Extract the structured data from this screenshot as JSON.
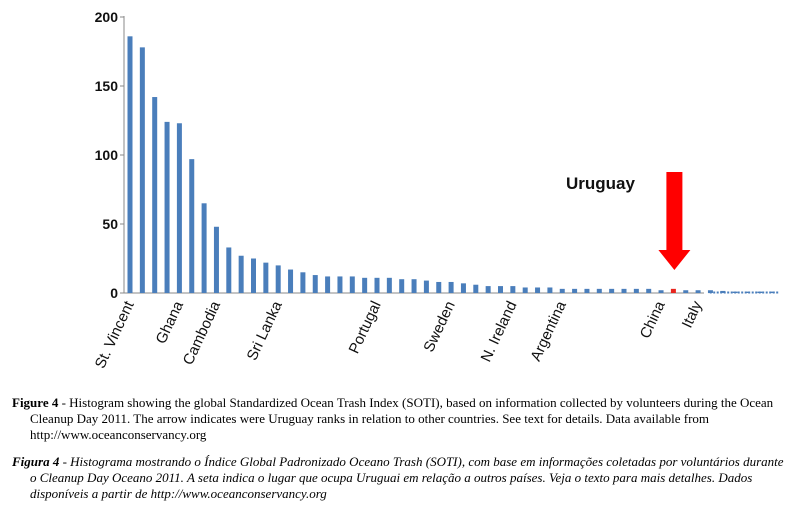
{
  "chart_data": {
    "type": "bar",
    "y_ticks": [
      0,
      50,
      100,
      150,
      200
    ],
    "ylim": [
      0,
      200
    ],
    "grid": false,
    "bar_color": "#4a7ebb",
    "highlight_color": "#e8251e",
    "highlight_index": 44,
    "values": [
      186,
      178,
      142,
      124,
      123,
      97,
      65,
      48,
      33,
      27,
      25,
      22,
      20,
      17,
      15,
      13,
      12,
      12,
      12,
      11,
      11,
      11,
      10,
      10,
      9,
      8,
      8,
      7,
      6,
      5,
      5,
      5,
      4,
      4,
      4,
      3,
      3,
      3,
      3,
      3,
      3,
      3,
      3,
      2,
      3,
      2,
      2,
      2,
      1.5,
      1,
      1,
      1,
      1
    ],
    "category_labels": [
      {
        "index": 0,
        "label": "St. Vincent"
      },
      {
        "index": 4,
        "label": "Ghana"
      },
      {
        "index": 7,
        "label": "Cambodia"
      },
      {
        "index": 12,
        "label": "Sri Lanka"
      },
      {
        "index": 20,
        "label": "Portugal"
      },
      {
        "index": 26,
        "label": "Sweden"
      },
      {
        "index": 31,
        "label": "N. Ireland"
      },
      {
        "index": 35,
        "label": "Argentina"
      },
      {
        "index": 43,
        "label": "China"
      },
      {
        "index": 46,
        "label": "Italy"
      }
    ],
    "annotation": {
      "text": "Uruguay",
      "arrow_color": "#ff0000",
      "points_to_index": 44
    }
  },
  "caption_en": {
    "label": "Figure 4",
    "text": " - Histogram showing the global Standardized Ocean Trash Index (SOTI), based on information collected by volunteers during the Ocean Cleanup Day 2011. The arrow indicates were Uruguay ranks in relation to other countries. See text for details. Data available from http://www.oceanconservancy.org"
  },
  "caption_pt": {
    "label": "Figura 4",
    "text": " - Histograma mostrando o Índice Global Padronizado Oceano Trash (SOTI), com base em informações coletadas por voluntários durante o Cleanup Day Oceano 2011. A seta indica o lugar que ocupa Uruguai em relação a outros países. Veja o texto para mais detalhes. Dados disponíveis a partir de http://www.oceanconservancy.org"
  }
}
